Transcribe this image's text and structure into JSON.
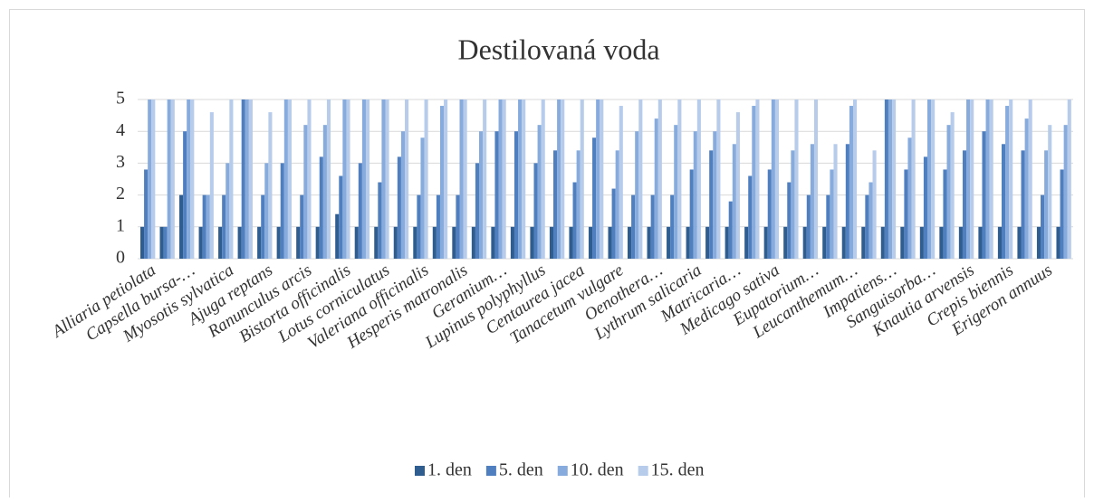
{
  "chart_data": {
    "type": "bar",
    "title": "Destilovaná voda",
    "categories": [
      "Alliaria petiolata",
      null,
      "Capsella bursa-…",
      null,
      "Myosotis sylvatica",
      null,
      "Ajuga reptans",
      null,
      "Ranunculus arcis",
      null,
      "Bistorta officinalis",
      null,
      "Lotus corniculatus",
      null,
      "Valeriana officinalis",
      null,
      "Hesperis matronalis",
      null,
      "Geranium…",
      null,
      "Lupinus polyphyllus",
      null,
      "Centaurea jacea",
      null,
      "Tanacetum vulgare",
      null,
      "Oenothera…",
      null,
      "Lythrum salicaria",
      null,
      "Matricaria…",
      null,
      "Medicago sativa",
      null,
      "Eupatorium…",
      null,
      "Leucanthemum…",
      null,
      "Impatiens…",
      null,
      "Sanguisorba…",
      null,
      "Knautia arvensis",
      null,
      "Crepis biennis",
      null,
      "Erigeron annuus",
      null
    ],
    "series": [
      {
        "name": "1. den",
        "color": "#2f5d8f",
        "values": [
          1,
          1,
          2,
          1,
          1,
          1,
          1,
          1,
          1,
          1,
          1.4,
          1,
          1,
          1,
          1,
          1,
          1,
          1,
          1,
          1,
          1,
          1,
          1,
          1,
          1,
          1,
          1,
          1,
          1,
          1,
          1,
          1,
          1,
          1,
          1,
          1,
          1,
          1,
          1,
          1,
          1,
          1,
          1,
          1,
          1,
          1,
          1,
          1
        ]
      },
      {
        "name": "5. den",
        "color": "#4f7fbf",
        "values": [
          2.8,
          1,
          4,
          2,
          2,
          5,
          2,
          3,
          2,
          3.2,
          2.6,
          3,
          2.4,
          3.2,
          2,
          2,
          2,
          3,
          4,
          4,
          3,
          3.4,
          2.4,
          3.8,
          2.2,
          2,
          2,
          2,
          2.8,
          3.4,
          1.8,
          2.6,
          2.8,
          2.4,
          2,
          2,
          3.6,
          2,
          5,
          2.8,
          3.2,
          2.8,
          3.4,
          4,
          3.6,
          3.4,
          2,
          2.8
        ]
      },
      {
        "name": "10. den",
        "color": "#86abdc",
        "values": [
          5,
          5,
          5,
          2,
          3,
          5,
          3,
          5,
          4.2,
          4.2,
          5,
          5,
          5,
          4,
          3.8,
          4.8,
          5,
          4,
          5,
          5,
          4.2,
          5,
          3.4,
          5,
          3.4,
          4,
          4.4,
          4.2,
          4,
          4,
          3.6,
          4.8,
          5,
          3.4,
          3.6,
          2.8,
          4.8,
          2.4,
          5,
          3.8,
          5,
          4.2,
          5,
          5,
          4.8,
          4.4,
          3.4,
          4.2
        ]
      },
      {
        "name": "15. den",
        "color": "#b7cceb",
        "values": [
          5,
          5,
          5,
          4.6,
          5,
          5,
          4.6,
          5,
          5,
          5,
          5,
          5,
          5,
          5,
          5,
          5,
          5,
          5,
          5,
          5,
          5,
          5,
          5,
          5,
          4.8,
          5,
          5,
          5,
          5,
          5,
          4.6,
          5,
          5,
          5,
          5,
          3.6,
          5,
          3.4,
          5,
          5,
          5,
          4.6,
          5,
          5,
          5,
          5,
          4.2,
          5
        ]
      }
    ],
    "ylim": [
      0,
      5
    ],
    "yticks": [
      0,
      1,
      2,
      3,
      4,
      5
    ],
    "grid": true,
    "legend": "bottom"
  }
}
